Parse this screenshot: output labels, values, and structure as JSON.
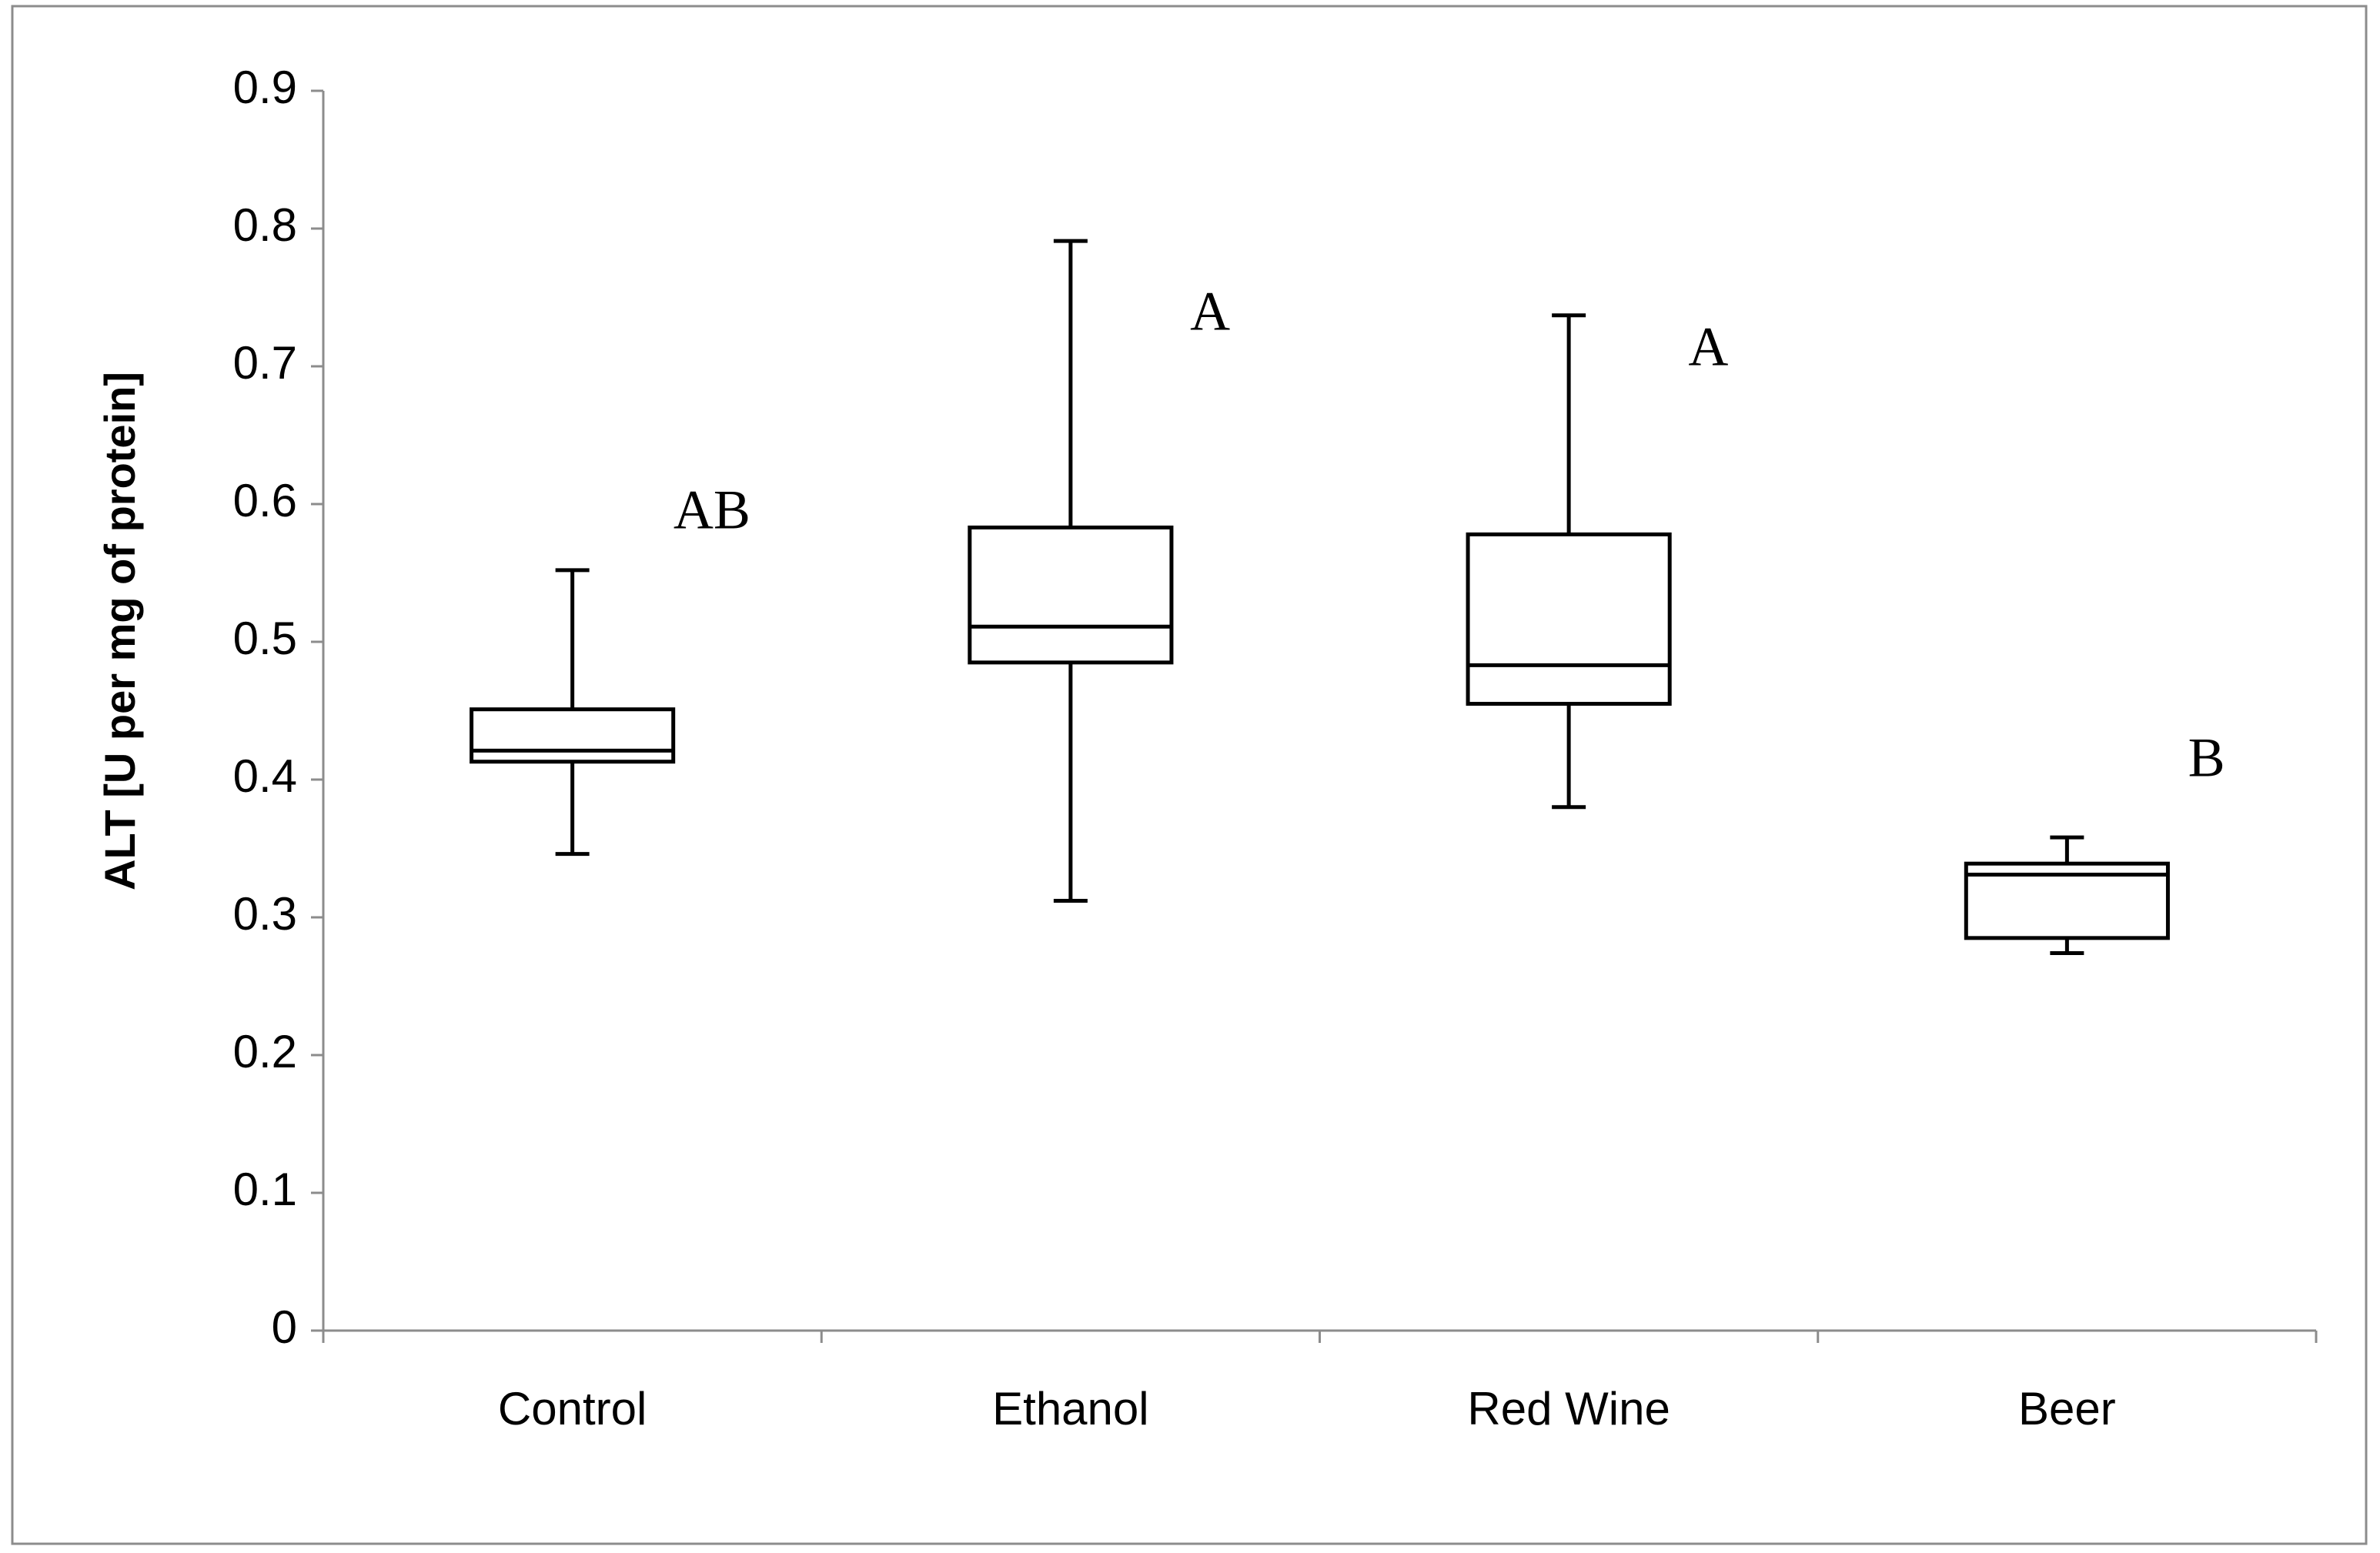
{
  "chart_data": {
    "type": "box",
    "y_label": "ALT [U per mg of protein]",
    "categories": [
      "Control",
      "Ethanol",
      "Red Wine",
      "Beer"
    ],
    "min": [
      0.346,
      0.312,
      0.38,
      0.274
    ],
    "q1": [
      0.413,
      0.485,
      0.455,
      0.285
    ],
    "median": [
      0.421,
      0.511,
      0.483,
      0.331
    ],
    "q3": [
      0.451,
      0.583,
      0.578,
      0.339
    ],
    "max": [
      0.552,
      0.791,
      0.737,
      0.358
    ],
    "group_letters": [
      "AB",
      "A",
      "A",
      "B"
    ],
    "color": "#000000",
    "ylim": [
      0,
      0.9
    ],
    "yticks": [
      0,
      0.1,
      0.2,
      0.3,
      0.4,
      0.5,
      0.6,
      0.7,
      0.8,
      0.9
    ],
    "grid": false
  }
}
